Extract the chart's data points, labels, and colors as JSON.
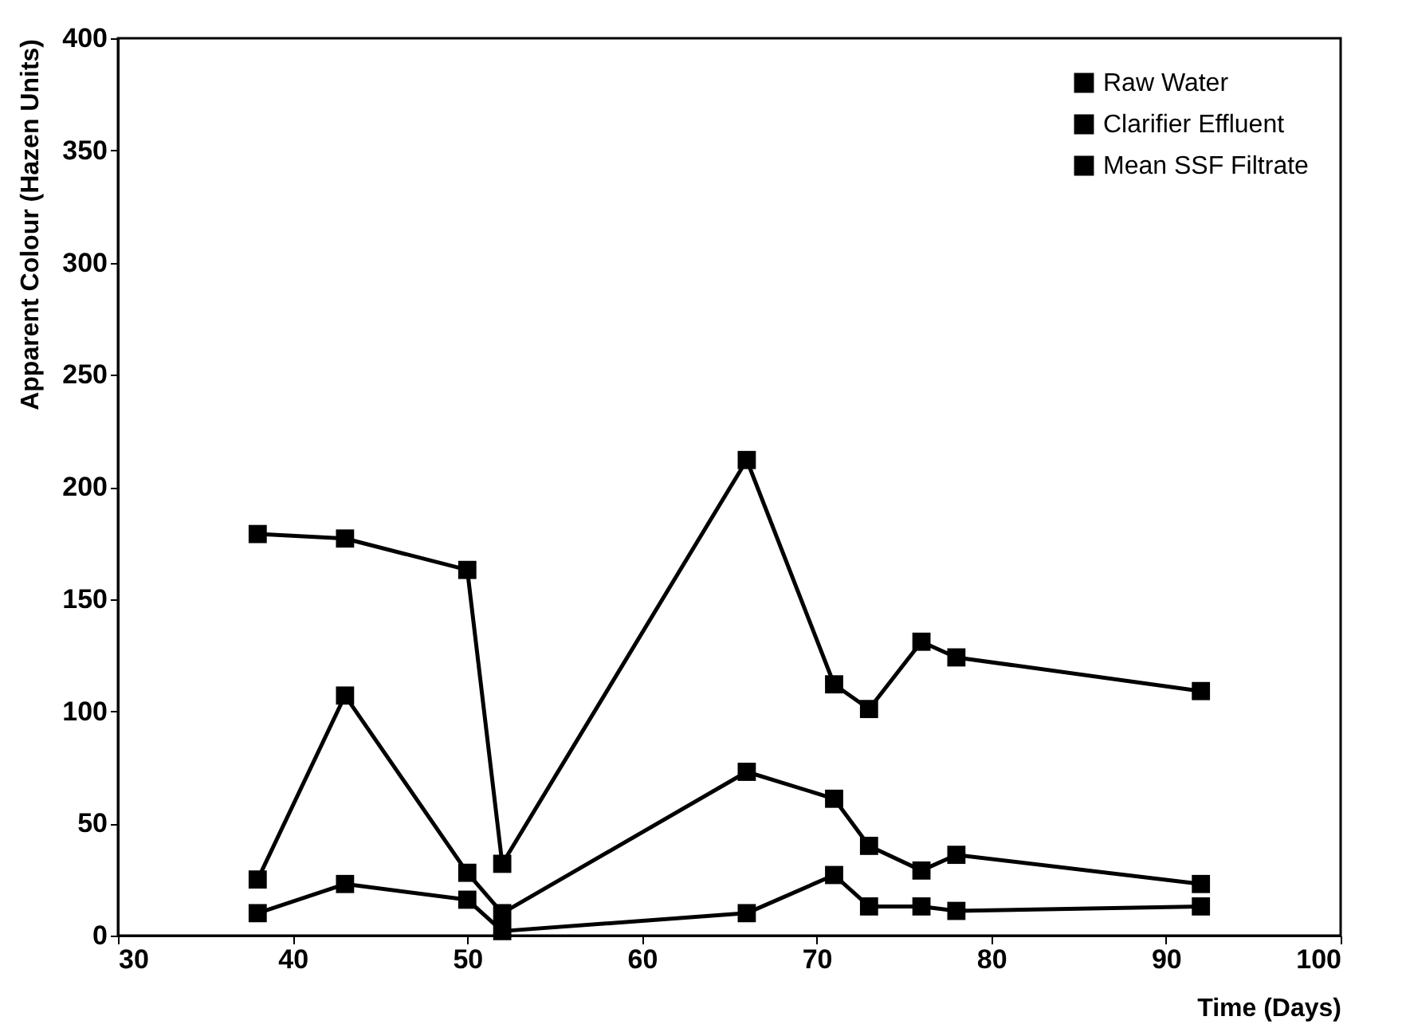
{
  "chart_data": {
    "type": "line",
    "xlabel": "Time (Days)",
    "ylabel": "Apparent Colour (Hazen Units)",
    "x": [
      38,
      43,
      50,
      52,
      66,
      71,
      73,
      76,
      78,
      92
    ],
    "series": [
      {
        "name": "Raw Water",
        "color": "#000000",
        "values": [
          179,
          177,
          163,
          32,
          212,
          112,
          101,
          131,
          124,
          109
        ]
      },
      {
        "name": "Clarifier Effluent",
        "color": "#000000",
        "values": [
          25,
          107,
          28,
          10,
          73,
          61,
          40,
          29,
          36,
          23
        ]
      },
      {
        "name": "Mean SSF Filtrate",
        "color": "#000000",
        "values": [
          10,
          23,
          16,
          2,
          10,
          27,
          13,
          13,
          11,
          13
        ]
      }
    ],
    "xlim": [
      30,
      100
    ],
    "xticks": [
      30,
      40,
      50,
      60,
      70,
      80,
      90,
      100
    ],
    "ylim": [
      0,
      400
    ],
    "yticks": [
      0,
      50,
      100,
      150,
      200,
      250,
      300,
      350,
      400
    ],
    "grid": false,
    "legend": "top right",
    "marker": "square",
    "line_style": "solid"
  }
}
